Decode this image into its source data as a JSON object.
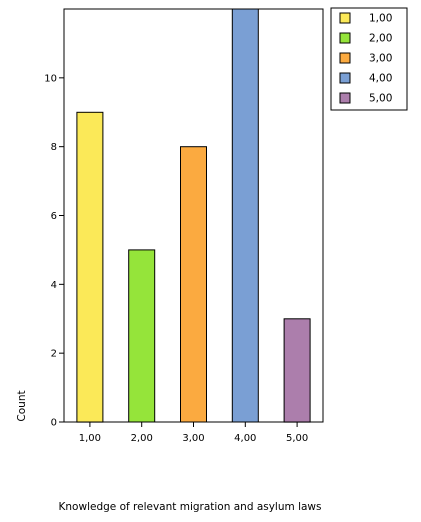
{
  "chart_data": {
    "type": "bar",
    "categories": [
      "1,00",
      "2,00",
      "3,00",
      "4,00",
      "5,00"
    ],
    "values": [
      9,
      5,
      8,
      12,
      3
    ],
    "colors": [
      "#fbe958",
      "#95e43a",
      "#fbaa40",
      "#7a9fd4",
      "#ac7eac"
    ],
    "xlabel": "Knowledge of relevant migration and asylum laws",
    "ylabel": "Count",
    "ylim": [
      0,
      12
    ],
    "yticks": [
      0,
      2,
      4,
      6,
      8,
      10
    ],
    "grid": false,
    "legend": {
      "position": "top-right",
      "entries": [
        "1,00",
        "2,00",
        "3,00",
        "4,00",
        "5,00"
      ]
    }
  }
}
